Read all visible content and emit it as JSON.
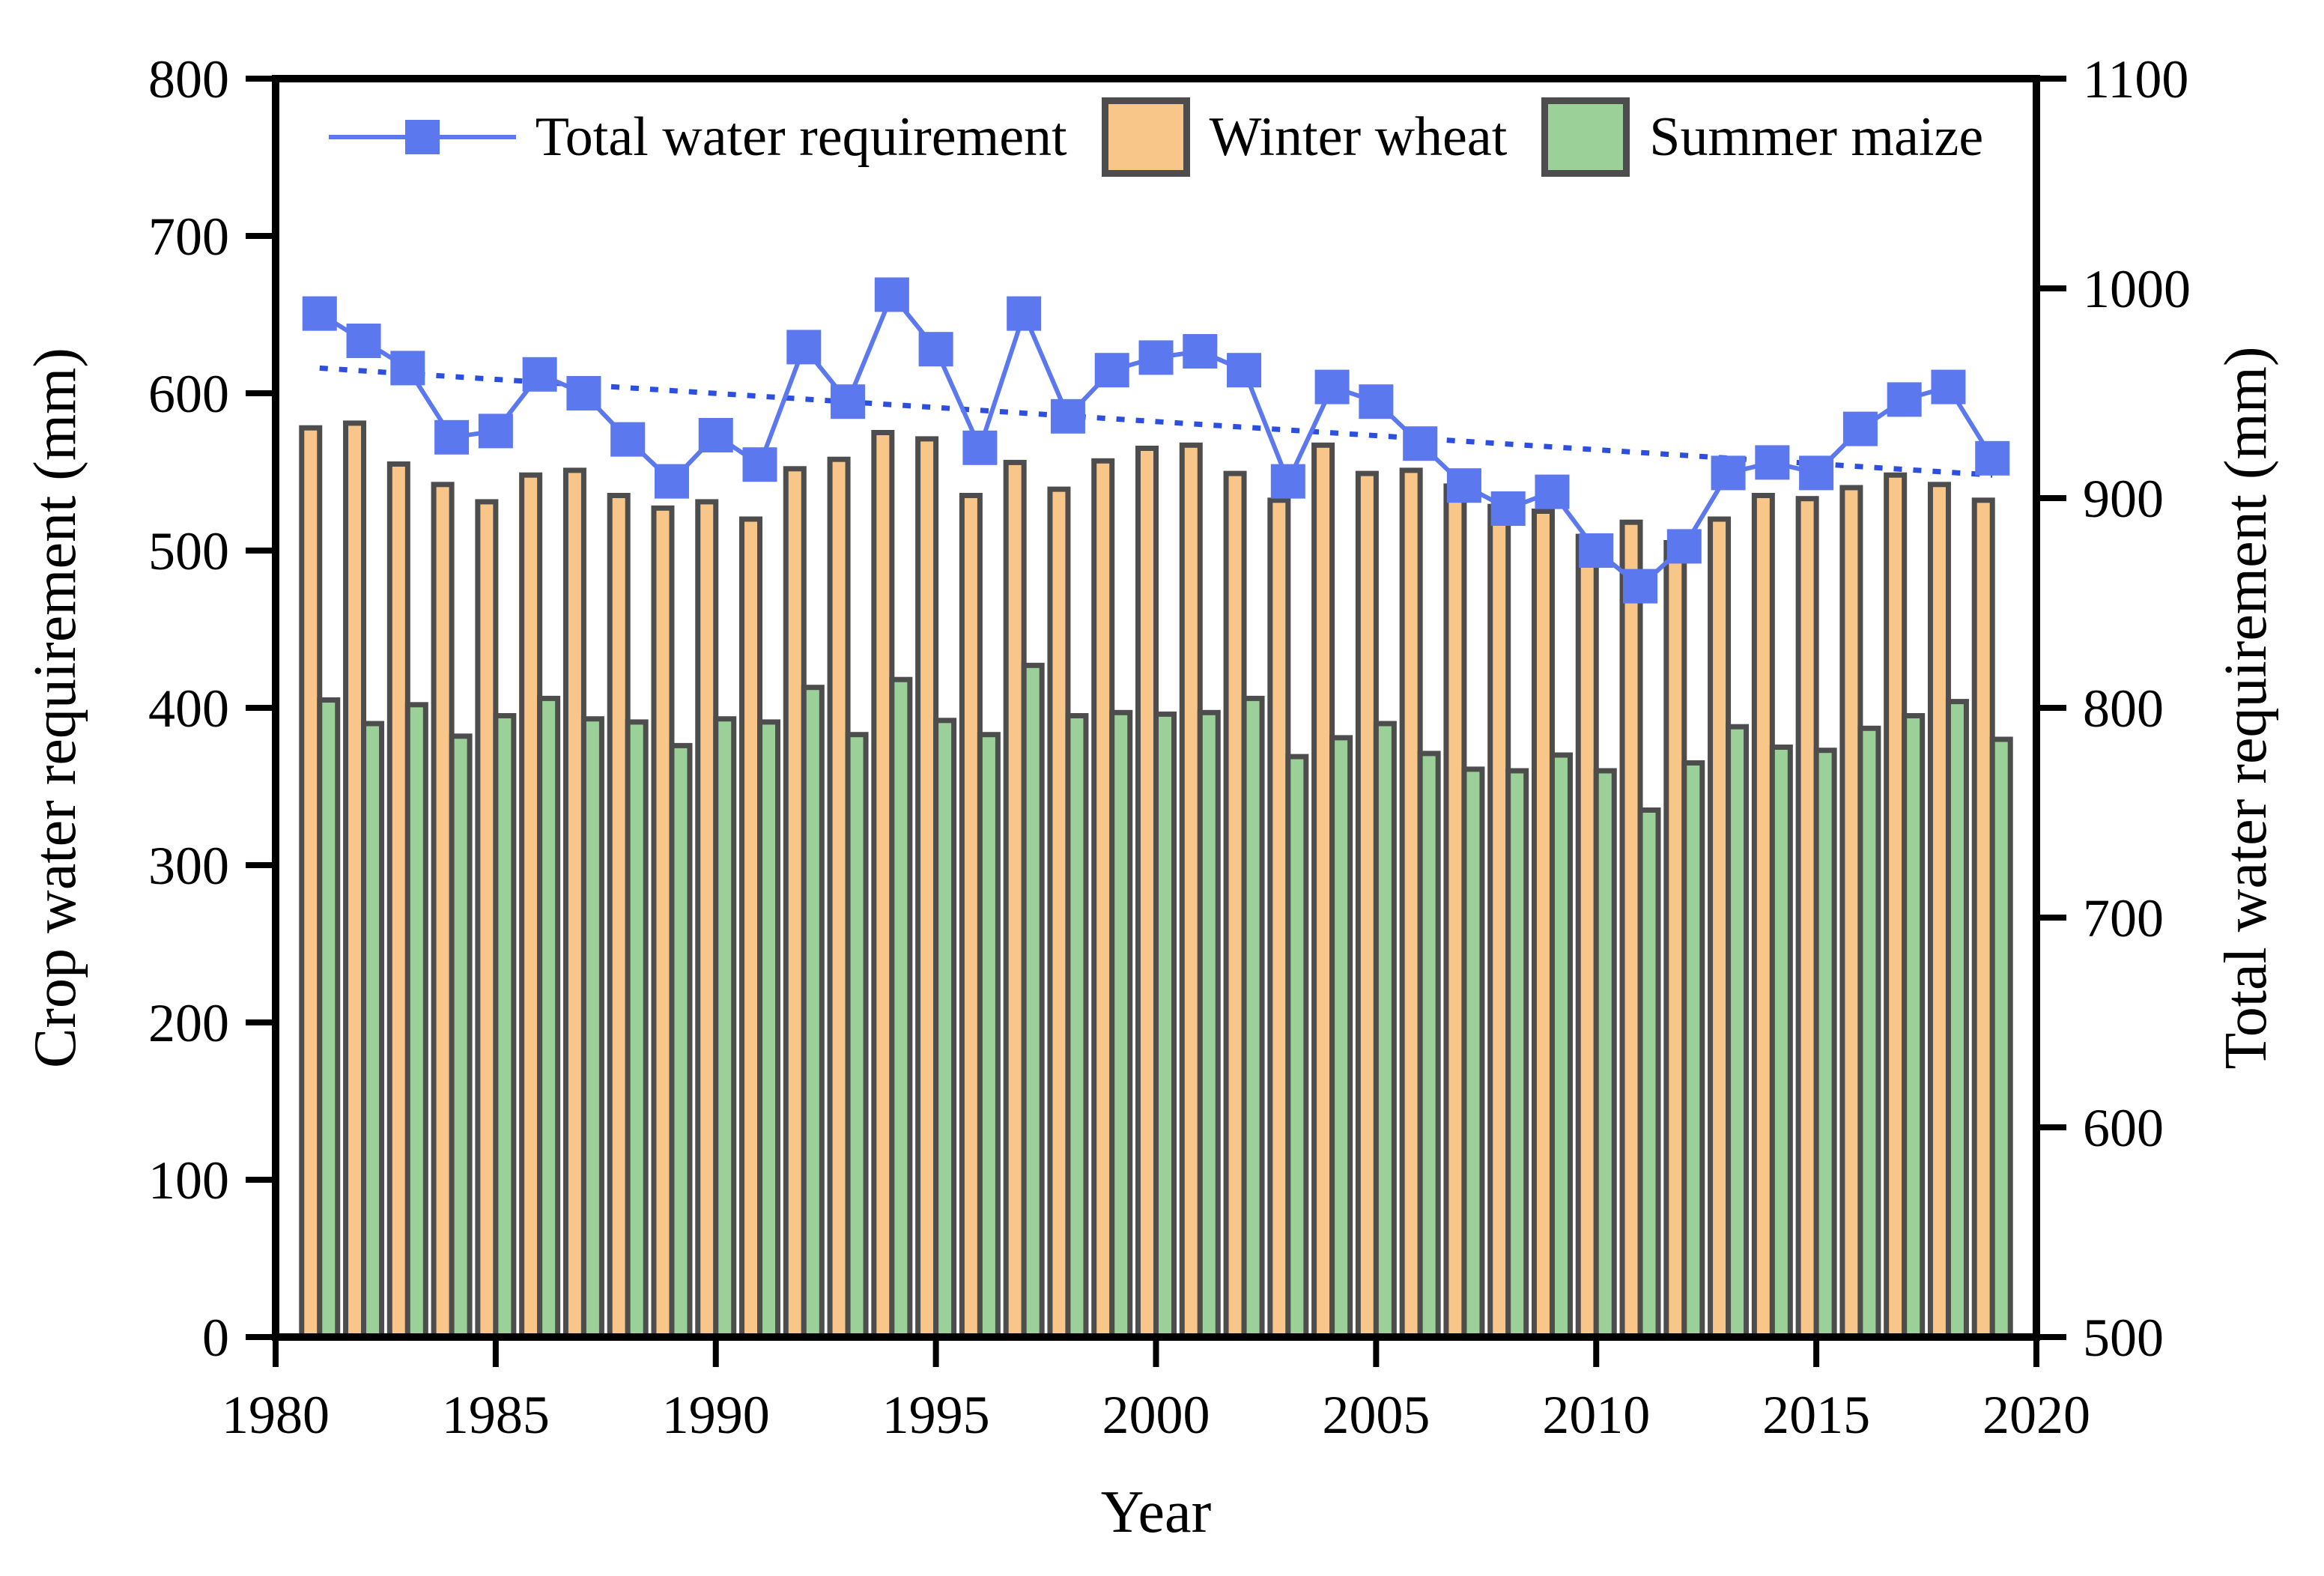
{
  "legend": {
    "items": [
      {
        "label": "Total water requirement",
        "swatch": "blue-line-square-marker"
      },
      {
        "label": "Winter wheat",
        "swatch": "orange-rect"
      },
      {
        "label": "Summer maize",
        "swatch": "green-rect"
      }
    ]
  },
  "axes": {
    "x_label": "Year",
    "y_left_label": "Crop water requirement (mm)",
    "y_right_label": "Total water requirement (mm)"
  },
  "colors": {
    "total_line": "#5b78ee",
    "trend_line": "#2d4fe0",
    "winter_wheat_fill": "#f9c689",
    "summer_maize_fill": "#9bd098",
    "bar_border": "#4d4d4d",
    "axis": "#000000"
  },
  "chart_data": {
    "type": "bar",
    "subtype": "grouped-bars-with-line-overlay",
    "title": "",
    "xlabel": "Year",
    "ylabel_left": "Crop water requirement (mm)",
    "ylabel_right": "Total water requirement (mm)",
    "xlim": [
      1980,
      2020
    ],
    "ylim_left": [
      0,
      800
    ],
    "ylim_right": [
      500,
      1100
    ],
    "xticks": [
      1980,
      1985,
      1990,
      1995,
      2000,
      2005,
      2010,
      2015,
      2020
    ],
    "yticks_left": [
      0,
      100,
      200,
      300,
      400,
      500,
      600,
      700,
      800
    ],
    "yticks_right": [
      500,
      600,
      700,
      800,
      900,
      1000,
      1100
    ],
    "grid": false,
    "legend_position": "top-center-inside",
    "x": [
      1981,
      1982,
      1983,
      1984,
      1985,
      1986,
      1987,
      1988,
      1989,
      1990,
      1991,
      1992,
      1993,
      1994,
      1995,
      1996,
      1997,
      1998,
      1999,
      2000,
      2001,
      2002,
      2003,
      2004,
      2005,
      2006,
      2007,
      2008,
      2009,
      2010,
      2011,
      2012,
      2013,
      2014,
      2015,
      2016,
      2017,
      2018,
      2019
    ],
    "series": [
      {
        "name": "Total water requirement",
        "type": "line",
        "axis": "right",
        "values": [
          988,
          975,
          962,
          929,
          932,
          959,
          950,
          928,
          908,
          930,
          916,
          972,
          946,
          997,
          971,
          924,
          988,
          939,
          961,
          967,
          970,
          961,
          908,
          953,
          946,
          926,
          906,
          895,
          903,
          875,
          858,
          877,
          912,
          917,
          912,
          933,
          947,
          953,
          919
        ]
      },
      {
        "name": "Winter wheat",
        "type": "bar",
        "axis": "left",
        "values": [
          578,
          581,
          555,
          542,
          531,
          548,
          551,
          535,
          527,
          531,
          520,
          552,
          558,
          575,
          571,
          535,
          556,
          539,
          557,
          565,
          567,
          549,
          532,
          567,
          549,
          551,
          541,
          528,
          525,
          509,
          518,
          505,
          520,
          535,
          533,
          540,
          548,
          542,
          532
        ]
      },
      {
        "name": "Summer maize",
        "type": "bar",
        "axis": "left",
        "values": [
          405,
          390,
          402,
          382,
          395,
          406,
          393,
          391,
          376,
          393,
          391,
          413,
          383,
          418,
          392,
          383,
          427,
          395,
          397,
          396,
          397,
          406,
          369,
          381,
          390,
          371,
          361,
          360,
          370,
          360,
          335,
          365,
          388,
          375,
          373,
          387,
          395,
          404,
          380
        ]
      },
      {
        "name": "Linear trend of total water requirement",
        "type": "dashed-trend-line",
        "axis": "right",
        "x": [
          1981,
          2019
        ],
        "values": [
          962,
          911
        ]
      }
    ]
  }
}
